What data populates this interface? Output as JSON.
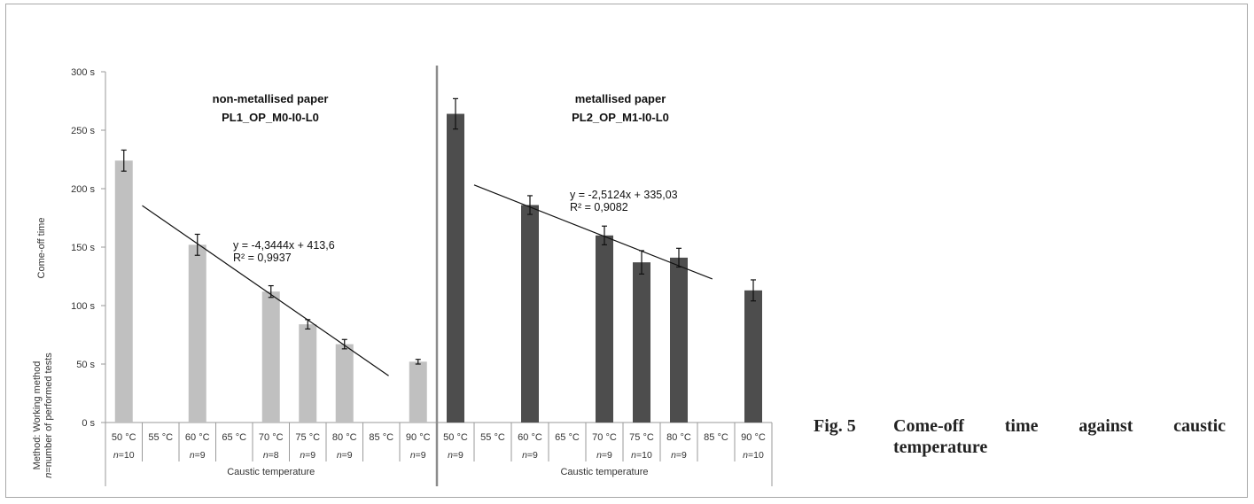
{
  "caption": {
    "number": "Fig. 5",
    "text_line1": "Come-off time against caustic",
    "text_line2": "temperature"
  },
  "y_axis": {
    "title": "Come-off time",
    "ticks": [
      "0 s",
      "50 s",
      "100 s",
      "150 s",
      "200 s",
      "250 s",
      "300 s"
    ],
    "method_line1": "Method: Working method",
    "method_line2": "n=number of performed tests"
  },
  "colors": {
    "panel1_bar": "#c0c0c0",
    "panel2_bar": "#4d4d4d",
    "axis": "#9a9a9a",
    "divider": "#8c8c8c",
    "trend": "#111111"
  },
  "chart_data": [
    {
      "type": "bar",
      "title_line1": "non-metallised paper",
      "title_line2": "PL1_OP_M0-I0-L0",
      "ylabel": "Come-off time",
      "xlabel": "Caustic temperature",
      "ylim": [
        0,
        300
      ],
      "categories": [
        "50 °C",
        "55 °C",
        "60 °C",
        "65 °C",
        "70 °C",
        "75 °C",
        "80 °C",
        "85 °C",
        "90 °C"
      ],
      "values": [
        224,
        null,
        152,
        null,
        112,
        84,
        67,
        null,
        52
      ],
      "errors": [
        9,
        null,
        9,
        null,
        5,
        4,
        4,
        null,
        2
      ],
      "n_labels": [
        "n=10",
        "",
        "n=9",
        "",
        "n=8",
        "n=9",
        "n=9",
        "",
        "n=9"
      ],
      "trendline": {
        "equation": "y = -4,3444x + 413,6",
        "r2": "R² = 0,9937",
        "from_x": 1.5,
        "to_x": 8.2,
        "slope": -4.3444,
        "intercept": 413.6
      }
    },
    {
      "type": "bar",
      "title_line1": "metallised paper",
      "title_line2": "PL2_OP_M1-I0-L0",
      "ylabel": "Come-off time",
      "xlabel": "Caustic temperature",
      "ylim": [
        0,
        300
      ],
      "categories": [
        "50 °C",
        "55 °C",
        "60 °C",
        "65 °C",
        "70 °C",
        "75 °C",
        "80 °C",
        "85 °C",
        "90 °C"
      ],
      "values": [
        264,
        null,
        186,
        null,
        160,
        137,
        141,
        null,
        113
      ],
      "errors": [
        13,
        null,
        8,
        null,
        8,
        10,
        8,
        null,
        9
      ],
      "n_labels": [
        "n=9",
        "",
        "n=9",
        "",
        "n=9",
        "n=10",
        "n=9",
        "",
        "n=10"
      ],
      "trendline": {
        "equation": "y = -2,5124x + 335,03",
        "r2": "R² = 0,9082",
        "from_x": 1.5,
        "to_x": 7.9,
        "slope": -2.5124,
        "intercept": 335.03
      }
    }
  ]
}
